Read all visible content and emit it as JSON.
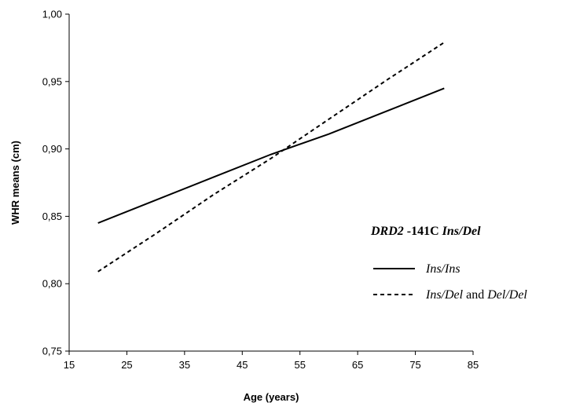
{
  "chart_data": {
    "type": "line",
    "xlabel": "Age (years)",
    "ylabel": "WHR means (cm)",
    "xlim": [
      15,
      85
    ],
    "ylim": [
      0.75,
      1.0
    ],
    "x_ticks": [
      15,
      25,
      35,
      45,
      55,
      65,
      75,
      85
    ],
    "y_ticks": [
      0.75,
      0.8,
      0.85,
      0.9,
      0.95,
      1.0
    ],
    "x_tick_labels": [
      "15",
      "25",
      "35",
      "45",
      "55",
      "65",
      "75",
      "85"
    ],
    "y_tick_labels": [
      "0,75",
      "0,80",
      "0,85",
      "0,90",
      "0,95",
      "1,00"
    ],
    "grid": false,
    "legend": {
      "placement": "right",
      "title_parts": [
        {
          "text": "DRD2",
          "style": "bold-italic"
        },
        {
          "text": " -141C ",
          "style": "bold"
        },
        {
          "text": "Ins/Del",
          "style": "bold-italic"
        }
      ],
      "entries": [
        {
          "series": 0,
          "parts": [
            {
              "text": "Ins/Ins",
              "style": "italic"
            }
          ]
        },
        {
          "series": 1,
          "parts": [
            {
              "text": "Ins/Del",
              "style": "italic"
            },
            {
              "text": " and ",
              "style": "normal"
            },
            {
              "text": "Del/Del",
              "style": "italic"
            }
          ]
        }
      ]
    },
    "series": [
      {
        "line_style": "solid",
        "color": "#000000",
        "x": [
          20,
          30,
          40,
          50,
          60,
          70,
          80
        ],
        "y": [
          0.845,
          0.862,
          0.879,
          0.896,
          0.911,
          0.928,
          0.945
        ]
      },
      {
        "line_style": "dotted",
        "color": "#000000",
        "x": [
          20,
          30,
          40,
          50,
          60,
          70,
          80
        ],
        "y": [
          0.809,
          0.837,
          0.866,
          0.893,
          0.922,
          0.951,
          0.979
        ]
      }
    ]
  }
}
